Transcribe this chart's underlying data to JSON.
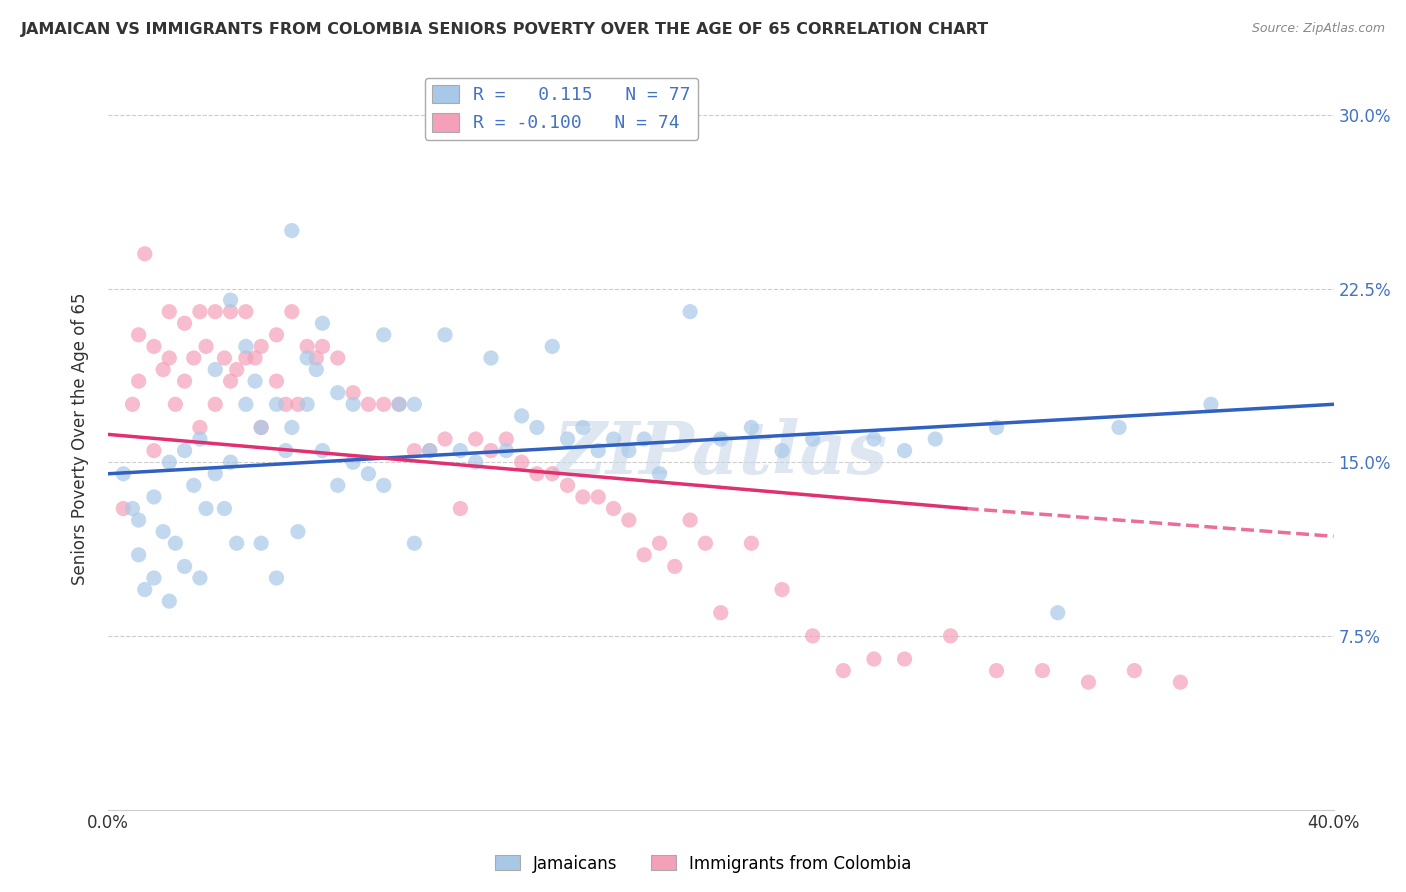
{
  "title": "JAMAICAN VS IMMIGRANTS FROM COLOMBIA SENIORS POVERTY OVER THE AGE OF 65 CORRELATION CHART",
  "source": "Source: ZipAtlas.com",
  "ylabel": "Seniors Poverty Over the Age of 65",
  "xlim": [
    0.0,
    0.4
  ],
  "ylim": [
    0.0,
    0.32
  ],
  "yticks": [
    0.0,
    0.075,
    0.15,
    0.225,
    0.3
  ],
  "ytick_labels_right": [
    "",
    "7.5%",
    "15.0%",
    "22.5%",
    "30.0%"
  ],
  "xticks": [
    0.0,
    0.05,
    0.1,
    0.15,
    0.2,
    0.25,
    0.3,
    0.35,
    0.4
  ],
  "legend_r_blue": "0.115",
  "legend_n_blue": "77",
  "legend_r_pink": "-0.100",
  "legend_n_pink": "74",
  "blue_color": "#a8c8e8",
  "pink_color": "#f4a0b8",
  "blue_line_color": "#3060c0",
  "pink_line_color": "#e03070",
  "watermark": "ZIPatlas",
  "blue_scatter_x": [
    0.005,
    0.008,
    0.01,
    0.01,
    0.012,
    0.015,
    0.015,
    0.018,
    0.02,
    0.02,
    0.022,
    0.025,
    0.025,
    0.028,
    0.03,
    0.03,
    0.032,
    0.035,
    0.035,
    0.038,
    0.04,
    0.04,
    0.042,
    0.045,
    0.045,
    0.048,
    0.05,
    0.05,
    0.055,
    0.055,
    0.058,
    0.06,
    0.06,
    0.062,
    0.065,
    0.065,
    0.068,
    0.07,
    0.07,
    0.075,
    0.075,
    0.08,
    0.08,
    0.085,
    0.09,
    0.09,
    0.095,
    0.1,
    0.1,
    0.105,
    0.11,
    0.115,
    0.12,
    0.125,
    0.13,
    0.135,
    0.14,
    0.145,
    0.15,
    0.155,
    0.16,
    0.165,
    0.17,
    0.175,
    0.18,
    0.19,
    0.2,
    0.21,
    0.22,
    0.23,
    0.25,
    0.26,
    0.27,
    0.29,
    0.31,
    0.33,
    0.36
  ],
  "blue_scatter_y": [
    0.145,
    0.13,
    0.125,
    0.11,
    0.095,
    0.135,
    0.1,
    0.12,
    0.15,
    0.09,
    0.115,
    0.155,
    0.105,
    0.14,
    0.16,
    0.1,
    0.13,
    0.19,
    0.145,
    0.13,
    0.22,
    0.15,
    0.115,
    0.2,
    0.175,
    0.185,
    0.165,
    0.115,
    0.175,
    0.1,
    0.155,
    0.25,
    0.165,
    0.12,
    0.195,
    0.175,
    0.19,
    0.21,
    0.155,
    0.18,
    0.14,
    0.175,
    0.15,
    0.145,
    0.205,
    0.14,
    0.175,
    0.175,
    0.115,
    0.155,
    0.205,
    0.155,
    0.15,
    0.195,
    0.155,
    0.17,
    0.165,
    0.2,
    0.16,
    0.165,
    0.155,
    0.16,
    0.155,
    0.16,
    0.145,
    0.215,
    0.16,
    0.165,
    0.155,
    0.16,
    0.16,
    0.155,
    0.16,
    0.165,
    0.085,
    0.165,
    0.175
  ],
  "pink_scatter_x": [
    0.005,
    0.008,
    0.01,
    0.01,
    0.012,
    0.015,
    0.015,
    0.018,
    0.02,
    0.02,
    0.022,
    0.025,
    0.025,
    0.028,
    0.03,
    0.03,
    0.032,
    0.035,
    0.035,
    0.038,
    0.04,
    0.04,
    0.042,
    0.045,
    0.045,
    0.048,
    0.05,
    0.05,
    0.055,
    0.055,
    0.058,
    0.06,
    0.062,
    0.065,
    0.068,
    0.07,
    0.075,
    0.08,
    0.085,
    0.09,
    0.095,
    0.1,
    0.105,
    0.11,
    0.115,
    0.12,
    0.125,
    0.13,
    0.135,
    0.14,
    0.145,
    0.15,
    0.155,
    0.16,
    0.165,
    0.17,
    0.175,
    0.18,
    0.185,
    0.19,
    0.195,
    0.2,
    0.21,
    0.22,
    0.23,
    0.24,
    0.25,
    0.26,
    0.275,
    0.29,
    0.305,
    0.32,
    0.335,
    0.35
  ],
  "pink_scatter_y": [
    0.13,
    0.175,
    0.205,
    0.185,
    0.24,
    0.2,
    0.155,
    0.19,
    0.215,
    0.195,
    0.175,
    0.21,
    0.185,
    0.195,
    0.215,
    0.165,
    0.2,
    0.215,
    0.175,
    0.195,
    0.215,
    0.185,
    0.19,
    0.215,
    0.195,
    0.195,
    0.2,
    0.165,
    0.205,
    0.185,
    0.175,
    0.215,
    0.175,
    0.2,
    0.195,
    0.2,
    0.195,
    0.18,
    0.175,
    0.175,
    0.175,
    0.155,
    0.155,
    0.16,
    0.13,
    0.16,
    0.155,
    0.16,
    0.15,
    0.145,
    0.145,
    0.14,
    0.135,
    0.135,
    0.13,
    0.125,
    0.11,
    0.115,
    0.105,
    0.125,
    0.115,
    0.085,
    0.115,
    0.095,
    0.075,
    0.06,
    0.065,
    0.065,
    0.075,
    0.06,
    0.06,
    0.055,
    0.06,
    0.055
  ],
  "blue_trend": [
    0.0,
    0.4,
    0.145,
    0.175
  ],
  "pink_trend_solid": [
    0.0,
    0.28,
    0.162,
    0.13
  ],
  "pink_trend_dash": [
    0.28,
    0.4,
    0.13,
    0.118
  ],
  "figsize": [
    14.06,
    8.92
  ],
  "dpi": 100
}
